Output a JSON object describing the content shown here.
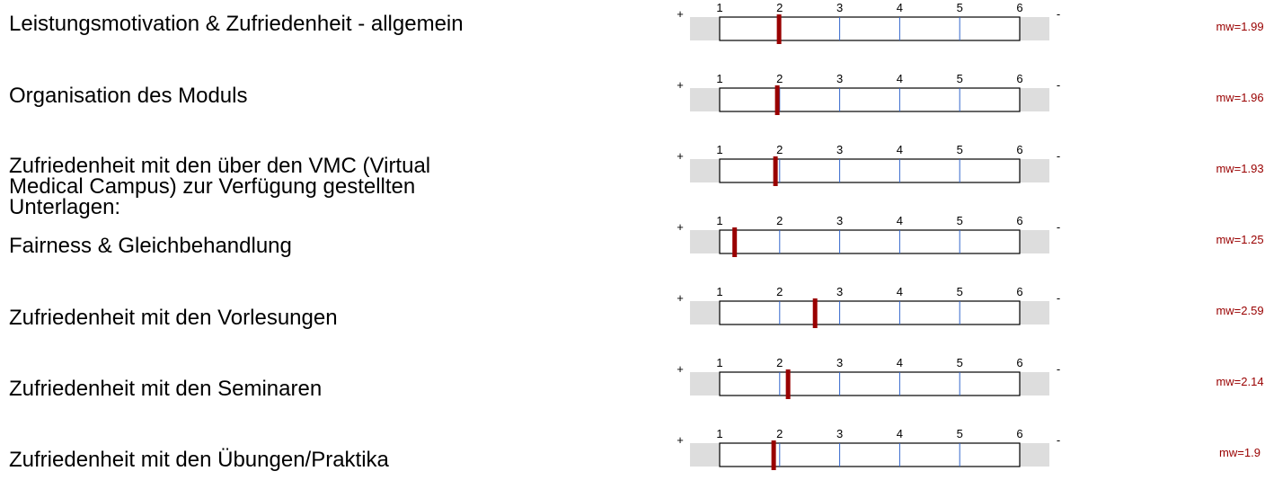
{
  "scale": {
    "plus_label": "+",
    "minus_label": "-",
    "ticks": [
      "1",
      "2",
      "3",
      "4",
      "5",
      "6"
    ]
  },
  "colors": {
    "marker": "#990000",
    "mean_text": "#990000",
    "gridline": "#3366cc",
    "band": "#dddddd",
    "box_border": "#000000"
  },
  "chart_data": {
    "type": "profile-line",
    "scale_min": 1,
    "scale_max": 6,
    "items": [
      {
        "label": "Leistungsmotivation & Zufriedenheit - allgemein",
        "mean": 1.99,
        "mean_label": "mw=1.99"
      },
      {
        "label": "Organisation des Moduls",
        "mean": 1.96,
        "mean_label": "mw=1.96"
      },
      {
        "label": "Zufriedenheit mit den über den VMC (Virtual\nMedical Campus)  zur Verfügung gestellten\nUnterlagen:",
        "mean": 1.93,
        "mean_label": "mw=1.93"
      },
      {
        "label": "Fairness & Gleichbehandlung",
        "mean": 1.25,
        "mean_label": "mw=1.25"
      },
      {
        "label": "Zufriedenheit mit den Vorlesungen",
        "mean": 2.59,
        "mean_label": "mw=2.59"
      },
      {
        "label": "Zufriedenheit mit den Seminaren",
        "mean": 2.14,
        "mean_label": "mw=2.14"
      },
      {
        "label": "Zufriedenheit mit den Übungen/Praktika",
        "mean": 1.9,
        "mean_label": "mw=1.9"
      }
    ]
  }
}
